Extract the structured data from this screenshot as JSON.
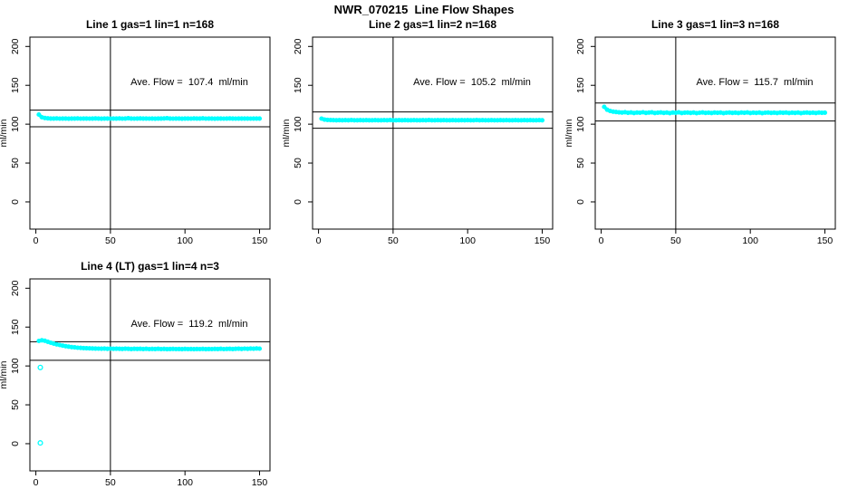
{
  "figure": {
    "title": "NWR_070215  Line Flow Shapes",
    "background_color": "#FFFFFF",
    "point_color": "#00FFFF",
    "axis_color": "#000000"
  },
  "axes": {
    "x_ticks": [
      0,
      50,
      100,
      150
    ],
    "y_ticks": [
      0,
      50,
      100,
      150,
      200
    ],
    "xlabel": "",
    "ylabel": "ml/min",
    "x_range": [
      -4,
      157
    ],
    "y_range": [
      -35,
      212
    ],
    "vline_x": 50,
    "grid": "off",
    "marker": "open-circle"
  },
  "chart_data": [
    {
      "type": "scatter",
      "title": "Line 1 gas=1 lin=1 n=168",
      "annotation": "Ave. Flow =  107.4  ml/min",
      "ave_flow_ml_min": 107.4,
      "n": 168,
      "ylabel": "ml/min",
      "limit_upper": 118.1,
      "limit_lower": 96.7,
      "series": {
        "x_start": 2,
        "x_step": 2,
        "y": [
          112.4,
          108.9,
          107.9,
          107.5,
          107.3,
          107.2,
          107.4,
          107.1,
          107.3,
          107.2,
          107.0,
          107.3,
          107.2,
          107.4,
          107.1,
          107.2,
          107.3,
          107.1,
          107.2,
          107.4,
          107.2,
          107.0,
          107.3,
          107.2,
          107.1,
          107.3,
          107.2,
          107.4,
          107.1,
          107.2,
          107.6,
          107.3,
          107.1,
          107.2,
          107.4,
          107.2,
          107.3,
          107.1,
          107.2,
          107.0,
          107.3,
          107.2,
          107.4,
          107.6,
          107.2,
          107.1,
          107.3,
          107.2,
          107.0,
          107.2,
          107.3,
          107.1,
          107.4,
          107.2,
          107.2,
          107.5,
          107.1,
          107.3,
          107.2,
          107.0,
          107.2,
          107.3,
          107.1,
          107.2,
          107.4,
          107.2,
          107.1,
          107.3,
          107.2,
          107.2,
          107.3,
          107.1,
          107.2,
          107.3,
          107.2
        ],
        "outliers": []
      }
    },
    {
      "type": "scatter",
      "title": "Line 2 gas=1 lin=2 n=168",
      "annotation": "Ave. Flow =  105.2  ml/min",
      "ave_flow_ml_min": 105.2,
      "n": 168,
      "ylabel": "ml/min",
      "limit_upper": 115.7,
      "limit_lower": 94.7,
      "series": {
        "x_start": 2,
        "x_step": 2,
        "y": [
          107.1,
          105.9,
          105.5,
          105.3,
          105.2,
          105.1,
          105.2,
          105.0,
          105.2,
          105.1,
          105.3,
          105.1,
          105.0,
          105.2,
          105.1,
          105.2,
          105.0,
          105.1,
          105.2,
          105.1,
          105.0,
          105.2,
          105.1,
          105.3,
          105.1,
          105.0,
          105.2,
          105.1,
          105.2,
          105.0,
          105.1,
          105.2,
          105.1,
          105.0,
          105.2,
          105.1,
          105.3,
          105.1,
          105.0,
          105.2,
          105.1,
          105.2,
          105.0,
          105.1,
          105.2,
          105.1,
          105.0,
          105.2,
          105.1,
          105.2,
          105.0,
          105.1,
          105.3,
          105.1,
          105.2,
          105.0,
          105.1,
          105.2,
          105.1,
          105.0,
          105.2,
          105.1,
          105.2,
          105.0,
          105.1,
          105.2,
          105.1,
          105.0,
          105.2,
          105.1,
          105.2,
          105.0,
          105.1,
          105.2,
          105.1
        ],
        "outliers": []
      }
    },
    {
      "type": "scatter",
      "title": "Line 3 gas=1 lin=3 n=168",
      "annotation": "Ave. Flow =  115.7  ml/min",
      "ave_flow_ml_min": 115.7,
      "n": 168,
      "ylabel": "ml/min",
      "limit_upper": 127.3,
      "limit_lower": 104.1,
      "series": {
        "x_start": 2,
        "x_step": 2,
        "y": [
          122.3,
          118.6,
          116.9,
          116.1,
          115.6,
          115.2,
          114.9,
          115.4,
          114.6,
          115.1,
          114.4,
          115.0,
          114.7,
          115.3,
          114.5,
          114.9,
          115.2,
          114.4,
          114.8,
          115.1,
          114.5,
          114.9,
          114.3,
          115.0,
          114.6,
          115.2,
          114.4,
          114.8,
          115.0,
          114.5,
          114.9,
          114.3,
          114.7,
          115.1,
          114.5,
          114.8,
          114.4,
          115.0,
          114.6,
          114.9,
          114.3,
          114.7,
          115.0,
          114.5,
          114.8,
          114.4,
          114.9,
          114.6,
          115.1,
          114.4,
          114.8,
          114.5,
          114.9,
          114.3,
          114.7,
          115.0,
          114.5,
          114.8,
          114.4,
          114.9,
          114.6,
          115.0,
          114.4,
          114.8,
          114.5,
          114.9,
          114.3,
          114.7,
          115.0,
          114.5,
          114.8,
          114.4,
          114.9,
          114.6,
          114.8
        ],
        "outliers": []
      }
    },
    {
      "type": "scatter",
      "title": "Line 4 (LT) gas=1 lin=4 n=3",
      "annotation": "Ave. Flow =  119.2  ml/min",
      "ave_flow_ml_min": 119.2,
      "n": 3,
      "ylabel": "ml/min",
      "limit_upper": 131.1,
      "limit_lower": 107.3,
      "series": {
        "x_start": 2,
        "x_step": 2,
        "y": [
          132.2,
          133.0,
          132.4,
          131.2,
          129.9,
          128.8,
          127.8,
          126.9,
          126.1,
          125.4,
          124.8,
          124.3,
          123.9,
          123.5,
          123.2,
          123.0,
          122.8,
          122.6,
          122.5,
          122.4,
          122.3,
          122.2,
          122.4,
          122.1,
          122.3,
          122.0,
          122.2,
          122.1,
          121.9,
          122.2,
          122.0,
          121.8,
          122.1,
          121.9,
          122.0,
          121.8,
          122.0,
          121.7,
          121.9,
          121.8,
          122.0,
          121.7,
          121.9,
          121.6,
          121.8,
          121.9,
          121.7,
          121.8,
          121.6,
          121.9,
          121.7,
          121.8,
          121.6,
          121.8,
          121.7,
          121.9,
          121.6,
          121.8,
          121.7,
          121.9,
          121.8,
          122.0,
          121.7,
          121.9,
          122.1,
          121.8,
          122.0,
          122.2,
          121.9,
          122.3,
          122.1,
          122.4,
          122.2,
          122.5,
          122.3
        ],
        "outliers": [
          [
            3,
            98.0
          ],
          [
            3,
            1.0
          ]
        ]
      }
    }
  ]
}
